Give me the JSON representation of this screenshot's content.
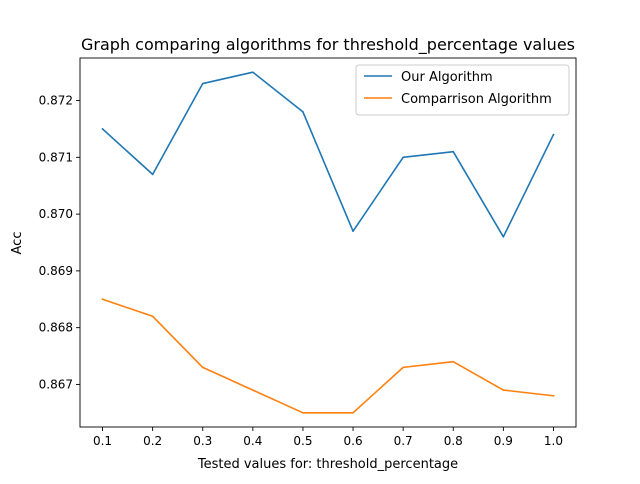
{
  "chart_data": {
    "type": "line",
    "title": "Graph comparing algorithms for threshold_percentage values",
    "xlabel": "Tested values for: threshold_percentage",
    "ylabel": "Acc",
    "x": [
      0.1,
      0.2,
      0.3,
      0.4,
      0.5,
      0.6,
      0.7,
      0.8,
      0.9,
      1.0
    ],
    "x_ticks": [
      "0.1",
      "0.2",
      "0.3",
      "0.4",
      "0.5",
      "0.6",
      "0.7",
      "0.8",
      "0.9",
      "1.0"
    ],
    "y_ticks": [
      0.867,
      0.868,
      0.869,
      0.87,
      0.871,
      0.872
    ],
    "y_tick_labels": [
      "0.867",
      "0.868",
      "0.869",
      "0.870",
      "0.871",
      "0.872"
    ],
    "xlim": [
      0.055,
      1.045
    ],
    "ylim": [
      0.86625,
      0.87275
    ],
    "grid": false,
    "legend_position": "upper-right",
    "series": [
      {
        "name": "Our Algorithm",
        "color": "#1f77b4",
        "values": [
          0.8715,
          0.8707,
          0.8723,
          0.8725,
          0.8718,
          0.8697,
          0.871,
          0.8711,
          0.8696,
          0.8714
        ]
      },
      {
        "name": "Comparrison Algorithm",
        "color": "#ff7f0e",
        "values": [
          0.8685,
          0.8682,
          0.8673,
          0.8669,
          0.8665,
          0.8665,
          0.8673,
          0.8674,
          0.8669,
          0.8668
        ]
      }
    ]
  }
}
